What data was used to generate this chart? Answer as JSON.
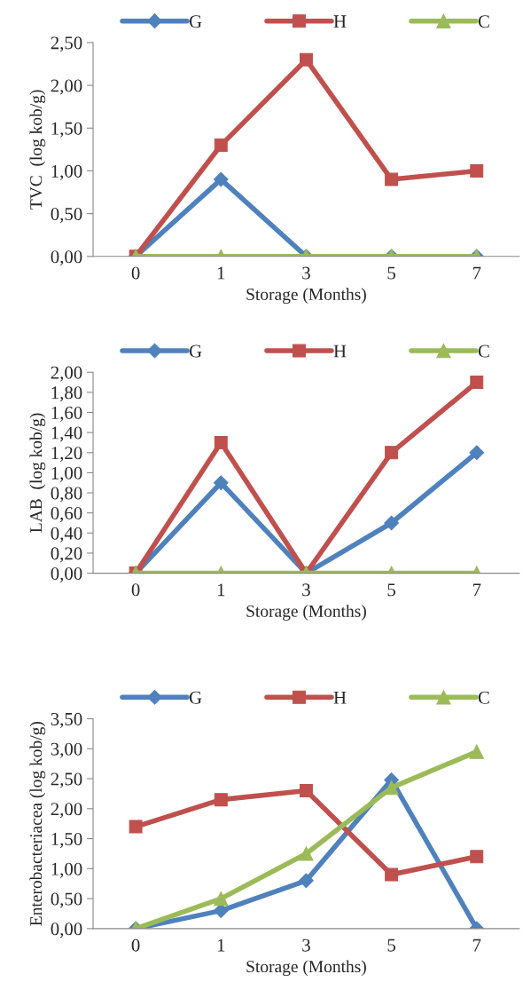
{
  "chart_data": [
    {
      "type": "line",
      "categories": [
        "0",
        "1",
        "3",
        "5",
        "7"
      ],
      "xlabel": "Storage (Months)",
      "ylabel": "TVC  (log kob/g)",
      "ylim": [
        0,
        2.5
      ],
      "yticks": [
        {
          "value": 0,
          "label": "0,00"
        },
        {
          "value": 0.5,
          "label": "0,50"
        },
        {
          "value": 1,
          "label": "1,00"
        },
        {
          "value": 1.5,
          "label": "1,50"
        },
        {
          "value": 2,
          "label": "2,00"
        },
        {
          "value": 2.5,
          "label": "2,50"
        }
      ],
      "legend": "top",
      "grid": false,
      "series": [
        {
          "name": "G",
          "color": "#4f81bd",
          "marker": "diamond",
          "values": [
            0,
            0.9,
            0,
            0,
            0
          ]
        },
        {
          "name": "H",
          "color": "#c0504d",
          "marker": "square",
          "values": [
            0,
            1.3,
            2.3,
            0.9,
            1.0
          ]
        },
        {
          "name": "C",
          "color": "#9bbb59",
          "marker": "triangle",
          "values": [
            0,
            0,
            0,
            0,
            0
          ]
        }
      ]
    },
    {
      "type": "line",
      "categories": [
        "0",
        "1",
        "3",
        "5",
        "7"
      ],
      "xlabel": "Storage (Months)",
      "ylabel": "LAB  (log kob/g)",
      "ylim": [
        0,
        2.0
      ],
      "yticks": [
        {
          "value": 0,
          "label": "0,00"
        },
        {
          "value": 0.2,
          "label": "0,20"
        },
        {
          "value": 0.4,
          "label": "0,40"
        },
        {
          "value": 0.6,
          "label": "0,60"
        },
        {
          "value": 0.8,
          "label": "0,80"
        },
        {
          "value": 1.0,
          "label": "1,00"
        },
        {
          "value": 1.2,
          "label": "1,20"
        },
        {
          "value": 1.4,
          "label": "1,40"
        },
        {
          "value": 1.6,
          "label": "1,60"
        },
        {
          "value": 1.8,
          "label": "1,80"
        },
        {
          "value": 2.0,
          "label": "2,00"
        }
      ],
      "legend": "top",
      "grid": false,
      "series": [
        {
          "name": "G",
          "color": "#4f81bd",
          "marker": "diamond",
          "values": [
            0,
            0.9,
            0,
            0.5,
            1.2
          ]
        },
        {
          "name": "H",
          "color": "#c0504d",
          "marker": "square",
          "values": [
            0,
            1.3,
            0,
            1.2,
            1.9
          ]
        },
        {
          "name": "C",
          "color": "#9bbb59",
          "marker": "triangle",
          "values": [
            0,
            0,
            0,
            0,
            0
          ]
        }
      ]
    },
    {
      "type": "line",
      "categories": [
        "0",
        "1",
        "3",
        "5",
        "7"
      ],
      "xlabel": "Storage (Months)",
      "ylabel": "Enterobacteriacea (log kob/g)",
      "ylim": [
        0,
        3.5
      ],
      "yticks": [
        {
          "value": 0,
          "label": "0,00"
        },
        {
          "value": 0.5,
          "label": "0,50"
        },
        {
          "value": 1,
          "label": "1,00"
        },
        {
          "value": 1.5,
          "label": "1,50"
        },
        {
          "value": 2,
          "label": "2,00"
        },
        {
          "value": 2.5,
          "label": "2,50"
        },
        {
          "value": 3,
          "label": "3,00"
        },
        {
          "value": 3.5,
          "label": "3,50"
        }
      ],
      "legend": "top",
      "grid": false,
      "series": [
        {
          "name": "G",
          "color": "#4f81bd",
          "marker": "diamond",
          "values": [
            0,
            0.3,
            0.8,
            2.48,
            0
          ]
        },
        {
          "name": "H",
          "color": "#c0504d",
          "marker": "square",
          "values": [
            1.7,
            2.15,
            2.3,
            0.9,
            1.2
          ]
        },
        {
          "name": "C",
          "color": "#9bbb59",
          "marker": "triangle",
          "values": [
            0,
            0.5,
            1.25,
            2.35,
            2.95
          ]
        }
      ]
    }
  ]
}
